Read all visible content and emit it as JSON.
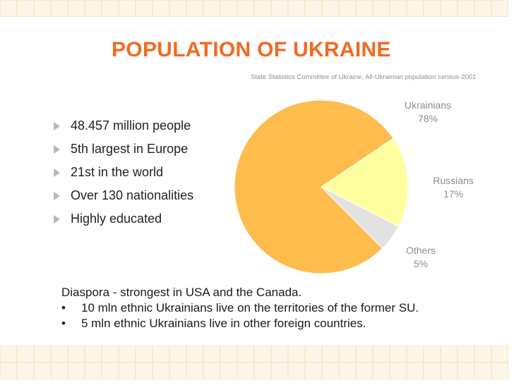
{
  "title": "POPULATION OF UKRAINE",
  "bullets": [
    "48.457 million people",
    "5th largest in Europe",
    "21st in the world",
    "Over 130 nationalities",
    "Highly educated"
  ],
  "diaspora": {
    "heading": "Diaspora - strongest in USA and the Canada.",
    "items": [
      "10 mln ethnic Ukrainians live on the territories of the former SU.",
      "5 mln ethnic Ukrainians live in other foreign countries."
    ]
  },
  "chart_data": {
    "type": "pie",
    "source_note": "State Statistics Committee of Ukraine, All-Ukrainian population census-2001",
    "slices": [
      {
        "label": "Ukrainians",
        "value": 78,
        "value_label": "78%",
        "color": "#fdbc4c"
      },
      {
        "label": "Russians",
        "value": 17,
        "value_label": "17%",
        "color": "#ffffa0"
      },
      {
        "label": "Others",
        "value": 5,
        "value_label": "5%",
        "color": "#e2e2e2"
      }
    ],
    "start_angle_deg": 34,
    "legend": "none"
  },
  "colors": {
    "title": "#f26a21",
    "data_labels": "#8c8c8c",
    "grid_tint": "#fdf6e8"
  }
}
